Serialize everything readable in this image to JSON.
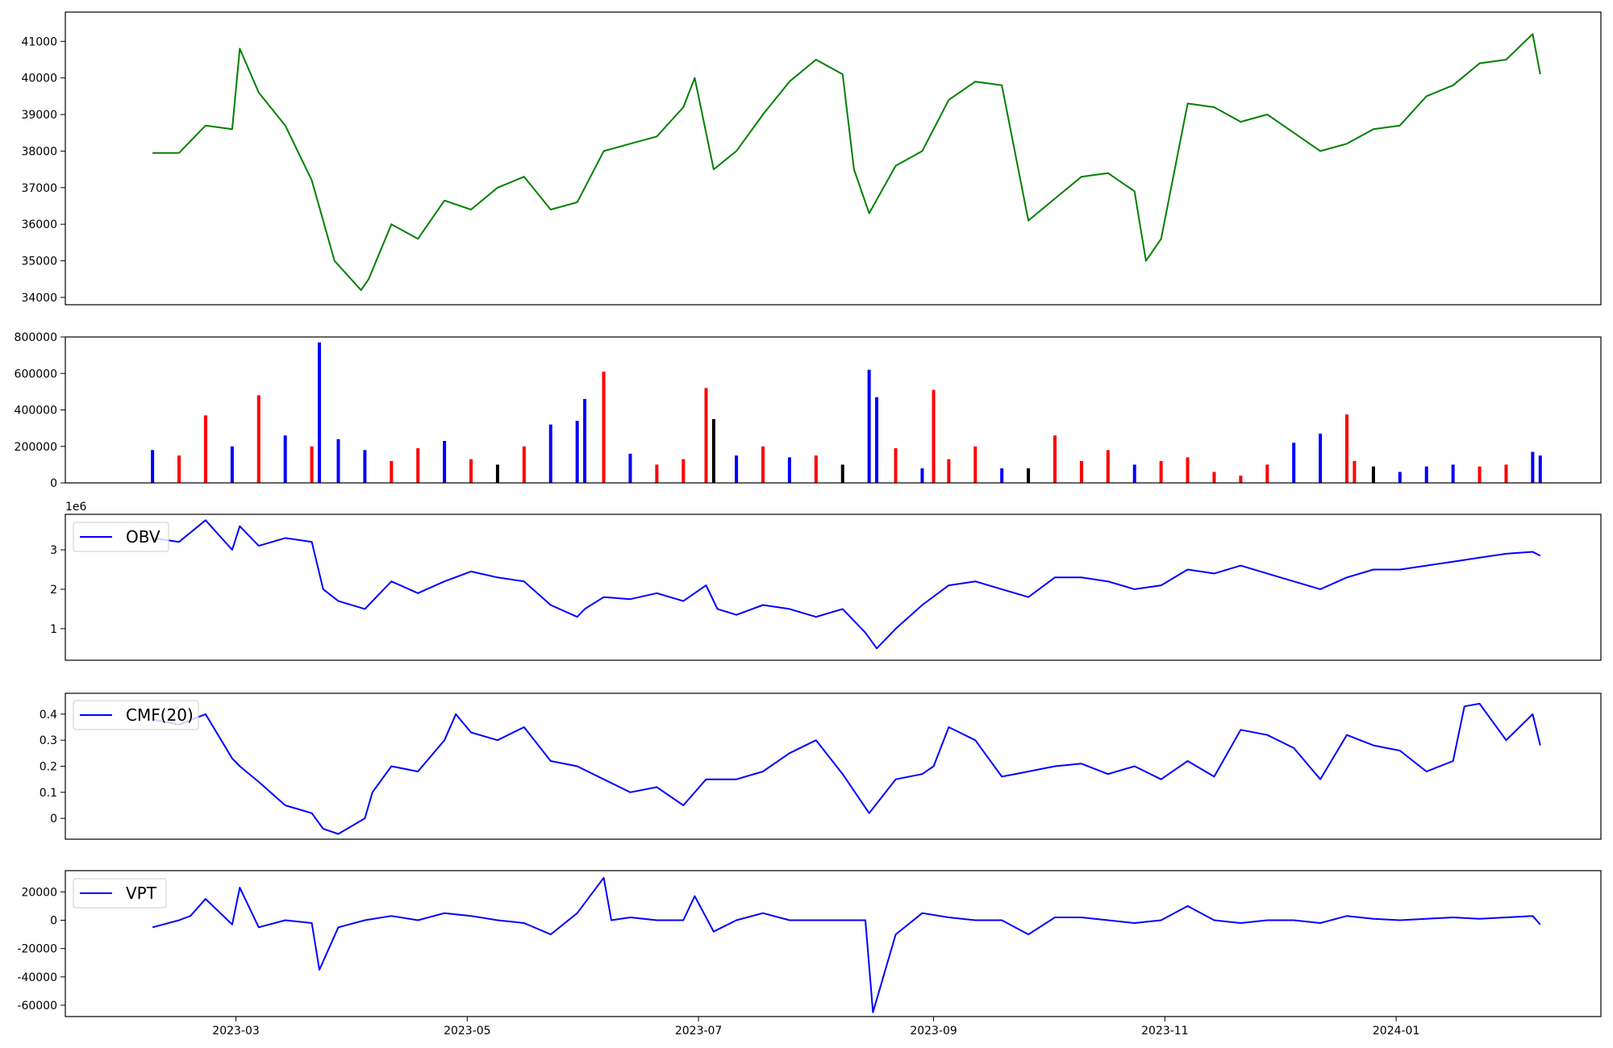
{
  "x_axis": {
    "ticks": [
      "2023-03",
      "2023-05",
      "2023-07",
      "2023-09",
      "2023-11",
      "2024-01"
    ]
  },
  "chart_data": [
    {
      "type": "line",
      "title": "",
      "color": "#008000",
      "ylim": [
        33800,
        41800
      ],
      "yticks": [
        34000,
        35000,
        36000,
        37000,
        38000,
        39000,
        40000,
        41000
      ],
      "x": [
        "2023-02-07",
        "2023-02-14",
        "2023-02-21",
        "2023-02-28",
        "2023-03-02",
        "2023-03-07",
        "2023-03-14",
        "2023-03-21",
        "2023-03-27",
        "2023-04-03",
        "2023-04-05",
        "2023-04-11",
        "2023-04-18",
        "2023-04-25",
        "2023-05-02",
        "2023-05-09",
        "2023-05-16",
        "2023-05-23",
        "2023-05-30",
        "2023-06-06",
        "2023-06-13",
        "2023-06-20",
        "2023-06-27",
        "2023-06-30",
        "2023-07-05",
        "2023-07-11",
        "2023-07-18",
        "2023-07-25",
        "2023-08-01",
        "2023-08-08",
        "2023-08-11",
        "2023-08-15",
        "2023-08-22",
        "2023-08-29",
        "2023-09-05",
        "2023-09-12",
        "2023-09-19",
        "2023-09-26",
        "2023-10-03",
        "2023-10-10",
        "2023-10-17",
        "2023-10-24",
        "2023-10-27",
        "2023-10-31",
        "2023-11-07",
        "2023-11-14",
        "2023-11-21",
        "2023-11-28",
        "2023-12-05",
        "2023-12-12",
        "2023-12-19",
        "2023-12-26",
        "2024-01-02",
        "2024-01-09",
        "2024-01-16",
        "2024-01-23",
        "2024-01-30",
        "2024-02-06",
        "2024-02-08"
      ],
      "values": [
        37950,
        37950,
        38700,
        38600,
        40800,
        39600,
        38700,
        37200,
        35000,
        34200,
        34500,
        36000,
        35600,
        36650,
        36400,
        37000,
        37300,
        36400,
        36600,
        38000,
        38200,
        38400,
        39200,
        40000,
        37500,
        38000,
        39000,
        39900,
        40500,
        40100,
        37500,
        36300,
        37600,
        38000,
        39400,
        39900,
        39800,
        36100,
        36700,
        37300,
        37400,
        36900,
        35000,
        35600,
        39300,
        39200,
        38800,
        39000,
        38500,
        38000,
        38200,
        38600,
        38700,
        39500,
        39800,
        40400,
        40500,
        41200,
        40100
      ],
      "xlabel": "",
      "ylabel": ""
    },
    {
      "type": "bar",
      "title": "",
      "ylim": [
        0,
        800000
      ],
      "yticks": [
        0,
        200000,
        400000,
        600000,
        800000
      ],
      "color_legend": {
        "up": "#0000ff",
        "down": "#ff0000",
        "flat": "#000000"
      },
      "x": [
        "2023-02-07",
        "2023-02-14",
        "2023-02-21",
        "2023-02-28",
        "2023-03-07",
        "2023-03-14",
        "2023-03-21",
        "2023-03-23",
        "2023-03-28",
        "2023-04-04",
        "2023-04-11",
        "2023-04-18",
        "2023-04-25",
        "2023-05-02",
        "2023-05-09",
        "2023-05-16",
        "2023-05-23",
        "2023-05-30",
        "2023-06-01",
        "2023-06-06",
        "2023-06-13",
        "2023-06-20",
        "2023-06-27",
        "2023-07-03",
        "2023-07-05",
        "2023-07-11",
        "2023-07-18",
        "2023-07-25",
        "2023-08-01",
        "2023-08-08",
        "2023-08-15",
        "2023-08-17",
        "2023-08-22",
        "2023-08-29",
        "2023-09-01",
        "2023-09-05",
        "2023-09-12",
        "2023-09-19",
        "2023-09-26",
        "2023-10-03",
        "2023-10-10",
        "2023-10-17",
        "2023-10-24",
        "2023-10-31",
        "2023-11-07",
        "2023-11-14",
        "2023-11-21",
        "2023-11-28",
        "2023-12-05",
        "2023-12-12",
        "2023-12-19",
        "2023-12-21",
        "2023-12-26",
        "2024-01-02",
        "2024-01-09",
        "2024-01-16",
        "2024-01-23",
        "2024-01-30",
        "2024-02-06",
        "2024-02-08"
      ],
      "values": [
        180000,
        150000,
        370000,
        200000,
        480000,
        260000,
        200000,
        770000,
        240000,
        180000,
        120000,
        190000,
        230000,
        130000,
        100000,
        200000,
        320000,
        340000,
        460000,
        610000,
        160000,
        100000,
        130000,
        520000,
        350000,
        150000,
        200000,
        140000,
        150000,
        100000,
        620000,
        470000,
        190000,
        80000,
        510000,
        130000,
        200000,
        80000,
        80000,
        260000,
        120000,
        180000,
        100000,
        120000,
        140000,
        60000,
        40000,
        100000,
        220000,
        270000,
        375000,
        120000,
        90000,
        60000,
        90000,
        100000,
        90000,
        100000,
        170000,
        150000
      ],
      "directions": [
        "up",
        "down",
        "down",
        "up",
        "down",
        "up",
        "down",
        "up",
        "up",
        "up",
        "down",
        "down",
        "up",
        "down",
        "flat",
        "down",
        "up",
        "up",
        "up",
        "down",
        "up",
        "down",
        "down",
        "down",
        "flat",
        "up",
        "down",
        "up",
        "down",
        "flat",
        "up",
        "up",
        "down",
        "up",
        "down",
        "down",
        "down",
        "up",
        "flat",
        "down",
        "down",
        "down",
        "up",
        "down",
        "down",
        "down",
        "down",
        "down",
        "up",
        "up",
        "down",
        "down",
        "flat",
        "up",
        "up",
        "up",
        "down",
        "down",
        "up",
        "up"
      ],
      "xlabel": "",
      "ylabel": ""
    },
    {
      "type": "line",
      "title": "",
      "color": "#0000ff",
      "ylim": [
        0.2,
        3.9
      ],
      "yticks": [
        1,
        2,
        3
      ],
      "exponent_label": "1e6",
      "series": [
        {
          "name": "OBV"
        }
      ],
      "x": [
        "2023-02-07",
        "2023-02-14",
        "2023-02-21",
        "2023-02-28",
        "2023-03-02",
        "2023-03-07",
        "2023-03-14",
        "2023-03-21",
        "2023-03-24",
        "2023-03-28",
        "2023-04-04",
        "2023-04-11",
        "2023-04-18",
        "2023-04-25",
        "2023-05-02",
        "2023-05-09",
        "2023-05-16",
        "2023-05-23",
        "2023-05-30",
        "2023-06-01",
        "2023-06-06",
        "2023-06-13",
        "2023-06-20",
        "2023-06-27",
        "2023-07-03",
        "2023-07-06",
        "2023-07-11",
        "2023-07-18",
        "2023-07-25",
        "2023-08-01",
        "2023-08-08",
        "2023-08-14",
        "2023-08-17",
        "2023-08-22",
        "2023-08-29",
        "2023-09-05",
        "2023-09-12",
        "2023-09-19",
        "2023-09-26",
        "2023-10-03",
        "2023-10-10",
        "2023-10-17",
        "2023-10-24",
        "2023-10-31",
        "2023-11-07",
        "2023-11-14",
        "2023-11-21",
        "2023-11-28",
        "2023-12-05",
        "2023-12-12",
        "2023-12-19",
        "2023-12-26",
        "2024-01-02",
        "2024-01-09",
        "2024-01-16",
        "2024-01-23",
        "2024-01-30",
        "2024-02-06",
        "2024-02-08"
      ],
      "values": [
        3.3,
        3.2,
        3.75,
        3.0,
        3.6,
        3.1,
        3.3,
        3.2,
        2.0,
        1.7,
        1.5,
        2.2,
        1.9,
        2.2,
        2.45,
        2.3,
        2.2,
        1.6,
        1.3,
        1.5,
        1.8,
        1.75,
        1.9,
        1.7,
        2.1,
        1.5,
        1.35,
        1.6,
        1.5,
        1.3,
        1.5,
        0.9,
        0.5,
        1.0,
        1.6,
        2.1,
        2.2,
        2.0,
        1.8,
        2.3,
        2.3,
        2.2,
        2.0,
        2.1,
        2.5,
        2.4,
        2.6,
        2.4,
        2.2,
        2.0,
        2.3,
        2.5,
        2.5,
        2.6,
        2.7,
        2.8,
        2.9,
        2.95,
        2.85
      ],
      "xlabel": "",
      "ylabel": ""
    },
    {
      "type": "line",
      "title": "",
      "color": "#0000ff",
      "ylim": [
        -0.08,
        0.48
      ],
      "yticks": [
        0.0,
        0.1,
        0.2,
        0.3,
        0.4
      ],
      "series": [
        {
          "name": "CMF(20)"
        }
      ],
      "x": [
        "2023-02-07",
        "2023-02-14",
        "2023-02-21",
        "2023-02-28",
        "2023-03-02",
        "2023-03-07",
        "2023-03-14",
        "2023-03-21",
        "2023-03-24",
        "2023-03-28",
        "2023-04-04",
        "2023-04-06",
        "2023-04-11",
        "2023-04-18",
        "2023-04-25",
        "2023-04-28",
        "2023-05-02",
        "2023-05-09",
        "2023-05-16",
        "2023-05-23",
        "2023-05-30",
        "2023-06-06",
        "2023-06-13",
        "2023-06-20",
        "2023-06-27",
        "2023-07-03",
        "2023-07-11",
        "2023-07-18",
        "2023-07-25",
        "2023-08-01",
        "2023-08-08",
        "2023-08-15",
        "2023-08-22",
        "2023-08-29",
        "2023-09-01",
        "2023-09-05",
        "2023-09-12",
        "2023-09-19",
        "2023-09-26",
        "2023-10-03",
        "2023-10-10",
        "2023-10-17",
        "2023-10-24",
        "2023-10-31",
        "2023-11-07",
        "2023-11-14",
        "2023-11-21",
        "2023-11-28",
        "2023-12-05",
        "2023-12-12",
        "2023-12-19",
        "2023-12-26",
        "2024-01-02",
        "2024-01-09",
        "2024-01-16",
        "2024-01-19",
        "2024-01-23",
        "2024-01-30",
        "2024-02-06",
        "2024-02-08"
      ],
      "values": [
        0.38,
        0.36,
        0.4,
        0.23,
        0.2,
        0.14,
        0.05,
        0.02,
        -0.04,
        -0.06,
        0.0,
        0.1,
        0.2,
        0.18,
        0.3,
        0.4,
        0.33,
        0.3,
        0.35,
        0.22,
        0.2,
        0.15,
        0.1,
        0.12,
        0.05,
        0.15,
        0.15,
        0.18,
        0.25,
        0.3,
        0.17,
        0.02,
        0.15,
        0.17,
        0.2,
        0.35,
        0.3,
        0.16,
        0.18,
        0.2,
        0.21,
        0.17,
        0.2,
        0.15,
        0.22,
        0.16,
        0.34,
        0.32,
        0.27,
        0.15,
        0.32,
        0.28,
        0.26,
        0.18,
        0.22,
        0.43,
        0.44,
        0.3,
        0.4,
        0.28
      ],
      "xlabel": "",
      "ylabel": ""
    },
    {
      "type": "line",
      "title": "",
      "color": "#0000ff",
      "ylim": [
        -68000,
        35000
      ],
      "yticks": [
        -60000,
        -40000,
        -20000,
        0,
        20000
      ],
      "series": [
        {
          "name": "VPT"
        }
      ],
      "x": [
        "2023-02-07",
        "2023-02-14",
        "2023-02-17",
        "2023-02-21",
        "2023-02-28",
        "2023-03-02",
        "2023-03-07",
        "2023-03-14",
        "2023-03-21",
        "2023-03-23",
        "2023-03-28",
        "2023-04-04",
        "2023-04-11",
        "2023-04-18",
        "2023-04-25",
        "2023-05-02",
        "2023-05-09",
        "2023-05-16",
        "2023-05-23",
        "2023-05-30",
        "2023-06-06",
        "2023-06-08",
        "2023-06-13",
        "2023-06-20",
        "2023-06-27",
        "2023-06-30",
        "2023-07-05",
        "2023-07-11",
        "2023-07-18",
        "2023-07-25",
        "2023-08-01",
        "2023-08-08",
        "2023-08-14",
        "2023-08-16",
        "2023-08-22",
        "2023-08-29",
        "2023-09-05",
        "2023-09-12",
        "2023-09-19",
        "2023-09-26",
        "2023-10-03",
        "2023-10-10",
        "2023-10-17",
        "2023-10-24",
        "2023-10-31",
        "2023-11-07",
        "2023-11-14",
        "2023-11-21",
        "2023-11-28",
        "2023-12-05",
        "2023-12-12",
        "2023-12-19",
        "2023-12-26",
        "2024-01-02",
        "2024-01-09",
        "2024-01-16",
        "2024-01-23",
        "2024-01-30",
        "2024-02-06",
        "2024-02-08"
      ],
      "values": [
        -5000,
        0,
        3000,
        15000,
        -3000,
        23000,
        -5000,
        0,
        -2000,
        -35000,
        -5000,
        0,
        3000,
        0,
        5000,
        3000,
        0,
        -2000,
        -10000,
        5000,
        30000,
        0,
        2000,
        0,
        0,
        17000,
        -8000,
        0,
        5000,
        0,
        0,
        0,
        0,
        -65000,
        -10000,
        5000,
        2000,
        0,
        0,
        -10000,
        2000,
        2000,
        0,
        -2000,
        0,
        10000,
        0,
        -2000,
        0,
        0,
        -2000,
        3000,
        1000,
        0,
        1000,
        2000,
        1000,
        2000,
        3000,
        -3000
      ],
      "xlabel": "",
      "ylabel": ""
    }
  ]
}
